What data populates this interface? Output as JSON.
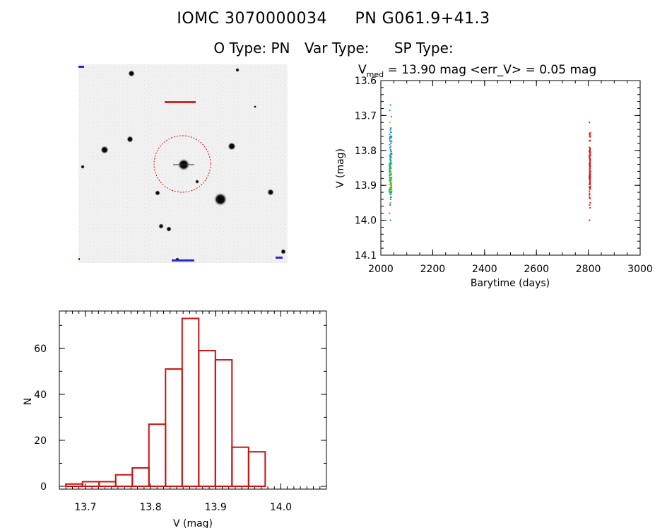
{
  "header": {
    "object_id": "IOMC 3070000034",
    "pn_name": "PN G061.9+41.3",
    "o_type": "O Type: PN",
    "var_type": "Var Type:",
    "sp_type": "SP Type:"
  },
  "stamp": {
    "image_kind": "grayscale star-field cutout with red circle aperture around target",
    "marker_color": "#cc0000"
  },
  "chart_data": [
    {
      "type": "scatter",
      "title": "V_med = 13.90 mag <err_V> = 0.05 mag",
      "title_parts": {
        "v": "V",
        "sub": "med",
        "rest": " = 13.90 mag <err_V> = 0.05 mag"
      },
      "xlabel": "Barytime (days)",
      "ylabel": "V (mag)",
      "xlim": [
        2000,
        3000
      ],
      "ylim": [
        14.1,
        13.6
      ],
      "y_inverted": true,
      "xticks": [
        2000,
        2200,
        2400,
        2600,
        2800,
        3000
      ],
      "yticks": [
        "13.6",
        "13.7",
        "13.8",
        "13.9",
        "14.0",
        "14.1"
      ],
      "grid": false,
      "series": [
        {
          "color": "#1e8fe0",
          "x_range": [
            2033,
            2042
          ],
          "y_range": [
            13.67,
            14.0
          ],
          "count": 80
        },
        {
          "color": "#2fbf4f",
          "x_range": [
            2033,
            2042
          ],
          "y_range": [
            13.8,
            13.98
          ],
          "count": 60
        },
        {
          "color": "#d6c21a",
          "x_range": [
            2033,
            2042
          ],
          "y_range": [
            13.72,
            13.95
          ],
          "count": 8
        },
        {
          "color": "#d41a1a",
          "x_range": [
            2804,
            2808
          ],
          "y_range": [
            13.72,
            14.0
          ],
          "count": 110
        }
      ]
    },
    {
      "type": "bar",
      "subtype": "histogram",
      "xlabel": "V (mag)",
      "ylabel": "N",
      "xlim": [
        13.66,
        14.07
      ],
      "ylim": [
        0,
        75
      ],
      "xticks": [
        "13.7",
        "13.8",
        "13.9",
        "14.0"
      ],
      "yticks": [
        "0",
        "20",
        "40",
        "60"
      ],
      "bin_width": 0.0255,
      "bin_start": 13.67,
      "values": [
        1,
        2,
        2,
        5,
        8,
        27,
        51,
        73,
        59,
        55,
        17,
        15
      ],
      "bar_color": "#cc1111"
    }
  ]
}
